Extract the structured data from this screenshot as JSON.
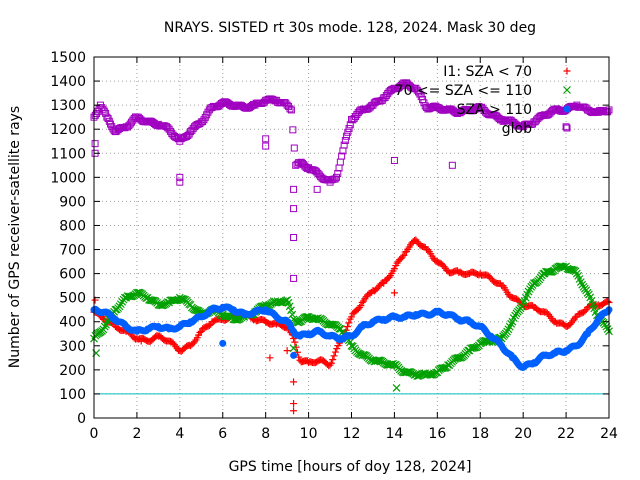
{
  "chart_data": {
    "type": "scatter",
    "title": "NRAYS. SISTED rt 30s mode. 128, 2024. Mask 30 deg",
    "xlabel": "GPS time [hours of doy 128, 2024]",
    "ylabel": "Number of GPS receiver-satellite rays",
    "xlim": [
      0,
      24
    ],
    "ylim": [
      0,
      1500
    ],
    "xticks": [
      "0",
      "2",
      "4",
      "6",
      "8",
      "10",
      "12",
      "14",
      "16",
      "18",
      "20",
      "22",
      "24"
    ],
    "yticks": [
      "0",
      "100",
      "200",
      "300",
      "400",
      "500",
      "600",
      "700",
      "800",
      "900",
      "1000",
      "1100",
      "1200",
      "1300",
      "1400",
      "1500"
    ],
    "grid": true,
    "threshold": {
      "y": 100,
      "color": "#00c0c0"
    },
    "legend_position": "top-right",
    "series": [
      {
        "name": "I1: SZA < 70",
        "marker": "plus",
        "color": "#ff0000",
        "x": [
          0,
          0.5,
          1,
          1.5,
          2,
          2.5,
          3,
          3.5,
          4,
          4.5,
          5,
          5.5,
          6,
          6.5,
          7,
          7.5,
          8,
          8.5,
          9,
          9.3,
          9.6,
          10,
          10.5,
          11,
          11.5,
          12,
          12.5,
          13,
          13.5,
          14,
          14.5,
          15,
          15.5,
          16,
          16.5,
          17,
          17.5,
          18,
          18.5,
          19,
          19.5,
          20,
          20.5,
          21,
          21.5,
          22,
          22.5,
          23,
          23.5,
          24
        ],
        "y": [
          440,
          410,
          380,
          360,
          330,
          320,
          340,
          320,
          280,
          300,
          360,
          400,
          410,
          420,
          430,
          410,
          400,
          390,
          380,
          330,
          240,
          230,
          240,
          220,
          320,
          420,
          480,
          530,
          560,
          620,
          690,
          740,
          700,
          650,
          610,
          605,
          600,
          600,
          580,
          550,
          500,
          470,
          460,
          440,
          400,
          380,
          420,
          460,
          470,
          480
        ]
      },
      {
        "name": "70 <= SZA <= 110",
        "marker": "cross",
        "color": "#00a000",
        "x": [
          0,
          0.5,
          1,
          1.5,
          2,
          2.5,
          3,
          3.5,
          4,
          4.5,
          5,
          5.5,
          6,
          6.5,
          7,
          7.5,
          8,
          8.5,
          9,
          9.3,
          9.6,
          10,
          10.5,
          11,
          11.5,
          12,
          12.5,
          13,
          13.5,
          14,
          14.5,
          15,
          15.5,
          16,
          16.5,
          17,
          17.5,
          18,
          18.5,
          19,
          19.5,
          20,
          20.5,
          21,
          21.5,
          22,
          22.5,
          23,
          23.5,
          24
        ],
        "y": [
          330,
          380,
          450,
          500,
          520,
          500,
          470,
          480,
          500,
          470,
          430,
          450,
          430,
          410,
          420,
          440,
          470,
          480,
          490,
          410,
          400,
          420,
          410,
          390,
          370,
          300,
          260,
          240,
          230,
          220,
          190,
          180,
          180,
          190,
          220,
          250,
          280,
          310,
          320,
          330,
          400,
          480,
          560,
          600,
          620,
          630,
          600,
          520,
          420,
          360
        ]
      },
      {
        "name": "SZA > 110",
        "marker": "dot",
        "color": "#0060ff",
        "x": [
          0,
          0.5,
          1,
          1.5,
          2,
          2.5,
          3,
          3.5,
          4,
          4.5,
          5,
          5.5,
          6,
          6.5,
          7,
          7.5,
          8,
          8.5,
          9,
          9.3,
          9.6,
          10,
          10.5,
          11,
          11.5,
          12,
          12.5,
          13,
          13.5,
          14,
          14.5,
          15,
          15.5,
          16,
          16.5,
          17,
          17.5,
          18,
          18.5,
          19,
          19.5,
          20,
          20.5,
          21,
          21.5,
          22,
          22.5,
          23,
          23.5,
          24
        ],
        "y": [
          450,
          440,
          410,
          380,
          360,
          370,
          380,
          370,
          380,
          400,
          420,
          450,
          460,
          450,
          430,
          440,
          450,
          420,
          400,
          360,
          340,
          350,
          360,
          340,
          330,
          340,
          380,
          400,
          410,
          420,
          420,
          430,
          430,
          440,
          430,
          410,
          400,
          380,
          340,
          300,
          250,
          210,
          230,
          260,
          270,
          280,
          300,
          350,
          410,
          450
        ]
      },
      {
        "name": "glob",
        "marker": "square",
        "color": "#a000c0",
        "x": [
          0,
          0.3,
          0.6,
          1,
          1.5,
          2,
          2.5,
          3,
          3.5,
          4,
          4.5,
          5,
          5.5,
          6,
          6.5,
          7,
          7.5,
          8,
          8.5,
          9,
          9.2,
          9.4,
          9.6,
          10,
          10.5,
          11,
          11.3,
          11.6,
          12,
          12.5,
          13,
          13.5,
          14,
          14.5,
          15,
          15.5,
          16,
          16.5,
          17,
          17.5,
          18,
          18.5,
          19,
          19.5,
          20,
          20.5,
          21,
          21.5,
          22,
          22.5,
          23,
          23.5,
          24
        ],
        "y": [
          1250,
          1300,
          1250,
          1190,
          1210,
          1250,
          1230,
          1220,
          1200,
          1150,
          1190,
          1230,
          1290,
          1310,
          1300,
          1290,
          1300,
          1320,
          1320,
          1300,
          1280,
          1050,
          1060,
          1040,
          1010,
          980,
          1000,
          1110,
          1240,
          1280,
          1300,
          1330,
          1370,
          1390,
          1370,
          1290,
          1290,
          1280,
          1270,
          1280,
          1290,
          1260,
          1240,
          1230,
          1210,
          1230,
          1260,
          1280,
          1280,
          1300,
          1280,
          1270,
          1280
        ]
      }
    ],
    "outliers": [
      {
        "series": 0,
        "x": 0.05,
        "y": 490
      },
      {
        "series": 0,
        "x": 2.2,
        "y": 320
      },
      {
        "series": 0,
        "x": 8.2,
        "y": 250
      },
      {
        "series": 0,
        "x": 9.0,
        "y": 280
      },
      {
        "series": 0,
        "x": 9.3,
        "y": 150
      },
      {
        "series": 0,
        "x": 9.3,
        "y": 60
      },
      {
        "series": 0,
        "x": 9.3,
        "y": 30
      },
      {
        "series": 0,
        "x": 14.0,
        "y": 520
      },
      {
        "series": 1,
        "x": 0.1,
        "y": 270
      },
      {
        "series": 1,
        "x": 14.1,
        "y": 125
      },
      {
        "series": 1,
        "x": 9.3,
        "y": 290
      },
      {
        "series": 2,
        "x": 6.0,
        "y": 310
      },
      {
        "series": 2,
        "x": 9.3,
        "y": 260
      },
      {
        "series": 3,
        "x": 0.05,
        "y": 1140
      },
      {
        "series": 3,
        "x": 0.05,
        "y": 1100
      },
      {
        "series": 3,
        "x": 4.0,
        "y": 980
      },
      {
        "series": 3,
        "x": 4.0,
        "y": 1000
      },
      {
        "series": 3,
        "x": 8.0,
        "y": 1160
      },
      {
        "series": 3,
        "x": 8.0,
        "y": 1130
      },
      {
        "series": 3,
        "x": 9.3,
        "y": 950
      },
      {
        "series": 3,
        "x": 9.3,
        "y": 870
      },
      {
        "series": 3,
        "x": 9.3,
        "y": 750
      },
      {
        "series": 3,
        "x": 9.3,
        "y": 580
      },
      {
        "series": 3,
        "x": 10.4,
        "y": 950
      },
      {
        "series": 3,
        "x": 14.0,
        "y": 1070
      },
      {
        "series": 3,
        "x": 16.7,
        "y": 1050
      },
      {
        "series": 3,
        "x": 22.0,
        "y": 1210
      }
    ]
  }
}
